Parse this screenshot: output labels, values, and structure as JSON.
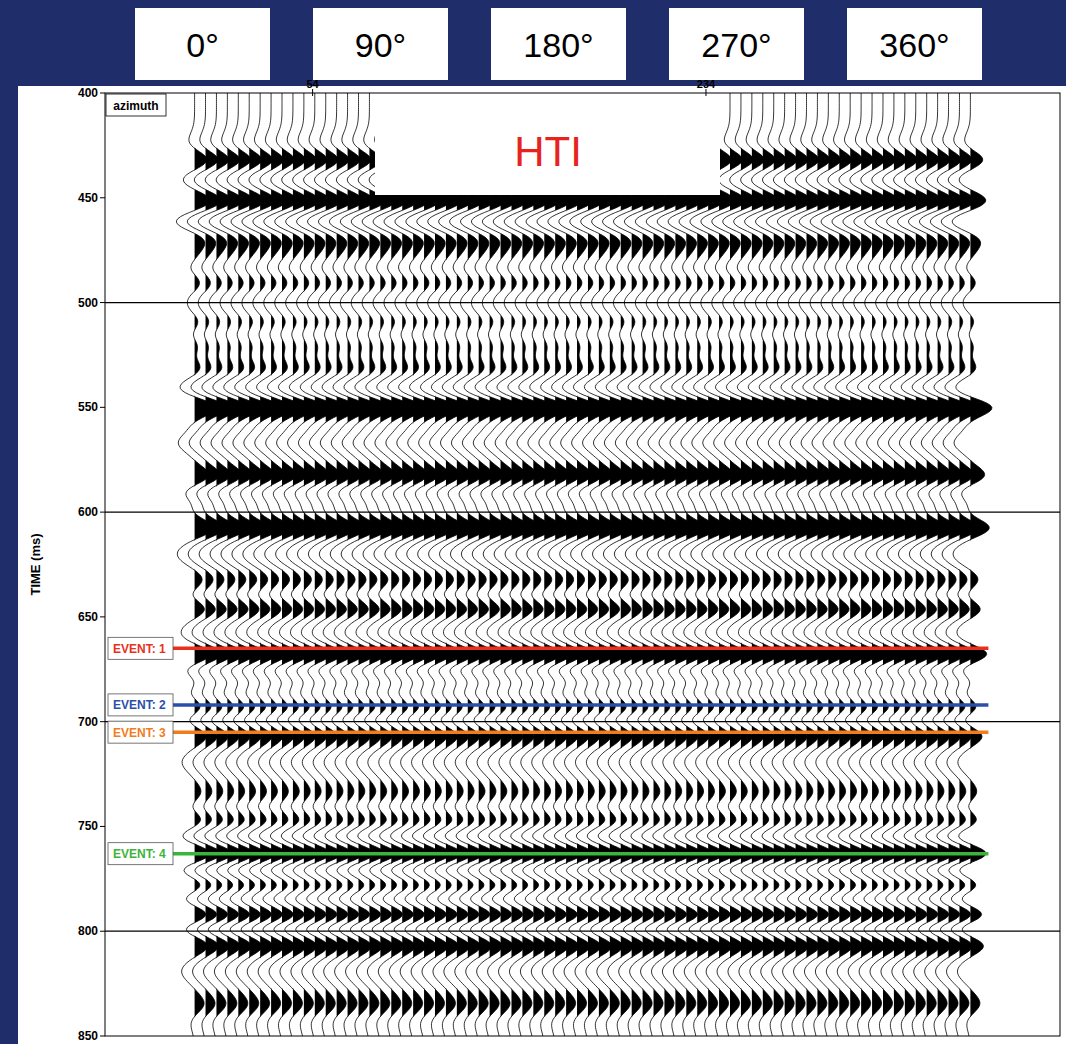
{
  "chart_data": {
    "type": "wiggle",
    "header": [
      "0°",
      "90°",
      "180°",
      "270°",
      "360°"
    ],
    "annotation": "HTI",
    "x_label": "azimuth",
    "y_label": "TIME (ms)",
    "x": [
      0,
      5,
      10,
      15,
      20,
      25,
      30,
      35,
      40,
      45,
      50,
      55,
      60,
      65,
      70,
      75,
      80,
      85,
      90,
      95,
      100,
      105,
      110,
      115,
      120,
      125,
      130,
      135,
      140,
      145,
      150,
      155,
      160,
      165,
      170,
      175,
      180,
      185,
      190,
      195,
      200,
      205,
      210,
      215,
      220,
      225,
      230,
      235,
      240,
      245,
      250,
      255,
      260,
      265,
      270,
      275,
      280,
      285,
      290,
      295,
      300,
      305,
      310,
      315,
      320,
      325,
      330,
      335,
      340,
      345,
      350,
      355
    ],
    "xlim": [
      -41,
      396
    ],
    "xticks": [
      54,
      234
    ],
    "ylim": [
      400,
      850
    ],
    "yticks": [
      400,
      450,
      500,
      550,
      600,
      650,
      700,
      750,
      800,
      850
    ],
    "grid": true,
    "reflectors": {
      "times": [
        432,
        451,
        462,
        470,
        478,
        490,
        510,
        521,
        531,
        550,
        567,
        583,
        597,
        607,
        621,
        634,
        646,
        668,
        681,
        693,
        706,
        720,
        735,
        747,
        763,
        778,
        792,
        806,
        820,
        835
      ],
      "amplitudes": [
        0.8,
        0.8,
        -0.5,
        0.6,
        0.5,
        0.5,
        0.5,
        0.7,
        0.7,
        1.3,
        -0.8,
        0.9,
        0.6,
        1.3,
        -0.6,
        0.5,
        0.8,
        1.2,
        0.6,
        0.8,
        0.8,
        -0.5,
        0.5,
        0.7,
        1.2,
        0.8,
        1.1,
        0.9,
        -0.5,
        0.5
      ]
    },
    "events": [
      {
        "name": "EVENT: 1",
        "color": "#e8301c",
        "time": 665
      },
      {
        "name": "EVENT: 2",
        "color": "#2a4fa8",
        "time": 692
      },
      {
        "name": "EVENT: 3",
        "color": "#f07c1e",
        "time": 705
      },
      {
        "name": "EVENT: 4",
        "color": "#3cb43c",
        "time": 763
      }
    ]
  }
}
